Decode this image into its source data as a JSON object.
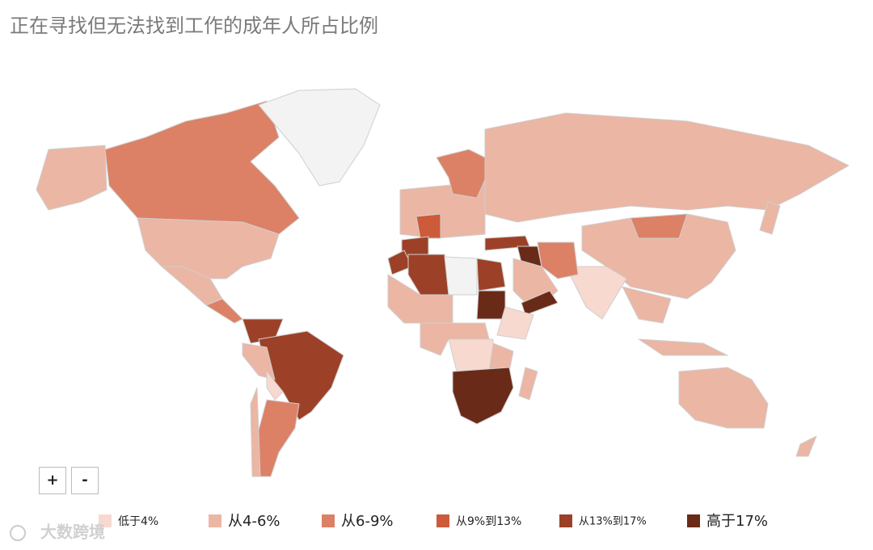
{
  "title": "正在寻找但无法找到工作的成年人所占比例",
  "legend": [
    {
      "label": "低于4%",
      "color": "#f7d9d0"
    },
    {
      "label": "从4-6%",
      "color": "#ebb6a4"
    },
    {
      "label": "从6-9%",
      "color": "#dc8166"
    },
    {
      "label": "从9%到13%",
      "color": "#cd5a39"
    },
    {
      "label": "从13%到17%",
      "color": "#9c4127"
    },
    {
      "label": "高于17%",
      "color": "#6a2a18"
    }
  ],
  "zoom": [
    "+",
    "-"
  ],
  "watermark": "大数跨境"
}
